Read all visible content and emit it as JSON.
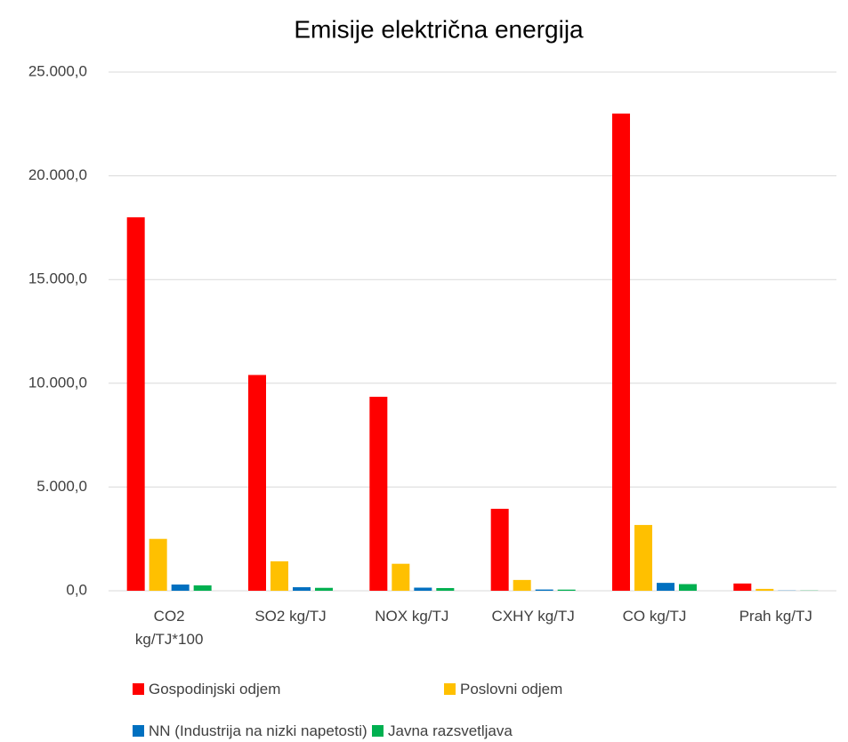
{
  "chart_data": {
    "type": "bar",
    "title": "Emisije električna energija",
    "categories": [
      "CO2 kg/TJ*100",
      "SO2 kg/TJ",
      "NOX kg/TJ",
      "CXHY kg/TJ",
      "CO kg/TJ",
      "Prah kg/TJ"
    ],
    "series": [
      {
        "name": "Gospodinjski odjem",
        "color": "#ff0000",
        "values": [
          18000,
          10400,
          9350,
          3950,
          23000,
          350
        ]
      },
      {
        "name": "Poslovni odjem",
        "color": "#ffc000",
        "values": [
          2500,
          1420,
          1300,
          520,
          3170,
          90
        ]
      },
      {
        "name": "NN (Industrija na nizki napetosti)",
        "color": "#0070c0",
        "values": [
          300,
          170,
          150,
          60,
          380,
          10
        ]
      },
      {
        "name": "Javna razsvetljava",
        "color": "#00b050",
        "values": [
          260,
          140,
          130,
          55,
          320,
          10
        ]
      }
    ],
    "ylim": [
      0,
      25000
    ],
    "yticks": [
      {
        "value": 0,
        "label": "0,0"
      },
      {
        "value": 5000,
        "label": "5.000,0"
      },
      {
        "value": 10000,
        "label": "10.000,0"
      },
      {
        "value": 15000,
        "label": "15.000,0"
      },
      {
        "value": 20000,
        "label": "20.000,0"
      },
      {
        "value": 25000,
        "label": "25.000,0"
      }
    ],
    "grid": true,
    "legend": "bottom"
  }
}
